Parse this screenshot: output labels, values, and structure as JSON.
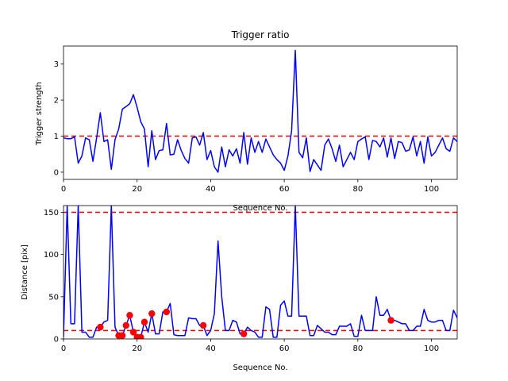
{
  "chart_data": [
    {
      "type": "line",
      "title": "Trigger ratio",
      "xlabel": "Sequence No.",
      "ylabel": "Trigger strength",
      "xlim": [
        0,
        107
      ],
      "ylim": [
        -0.2,
        3.5
      ],
      "xticks": [
        0,
        20,
        40,
        60,
        80,
        100
      ],
      "yticks": [
        0,
        1,
        2,
        3
      ],
      "grid": false,
      "series": [
        {
          "color": "#0000ff",
          "style": "solid",
          "x": [
            0,
            1,
            2,
            3,
            4,
            5,
            6,
            7,
            8,
            9,
            10,
            11,
            12,
            13,
            14,
            15,
            16,
            17,
            18,
            19,
            20,
            21,
            22,
            23,
            24,
            25,
            26,
            27,
            28,
            29,
            30,
            31,
            32,
            33,
            34,
            35,
            36,
            37,
            38,
            39,
            40,
            41,
            42,
            43,
            44,
            45,
            46,
            47,
            48,
            49,
            50,
            51,
            52,
            53,
            54,
            55,
            56,
            57,
            58,
            59,
            60,
            61,
            62,
            63,
            64,
            65,
            66,
            67,
            68,
            69,
            70,
            71,
            72,
            73,
            74,
            75,
            76,
            77,
            78,
            79,
            80,
            81,
            82,
            83,
            84,
            85,
            86,
            87,
            88,
            89,
            90,
            91,
            92,
            93,
            94,
            95,
            96,
            97,
            98,
            99,
            100,
            101,
            102,
            103,
            104,
            105,
            106,
            107
          ],
          "y": [
            0.95,
            0.93,
            0.93,
            0.98,
            0.25,
            0.45,
            0.95,
            0.9,
            0.3,
            0.95,
            1.65,
            0.85,
            0.9,
            0.08,
            0.9,
            1.2,
            1.75,
            1.82,
            1.9,
            2.15,
            1.8,
            1.4,
            1.2,
            0.15,
            1.15,
            0.35,
            0.6,
            0.62,
            1.35,
            0.48,
            0.5,
            0.9,
            0.6,
            0.38,
            0.25,
            0.95,
            0.98,
            0.75,
            1.1,
            0.35,
            0.6,
            0.15,
            0.0,
            0.7,
            0.15,
            0.62,
            0.45,
            0.65,
            0.25,
            1.1,
            0.22,
            0.95,
            0.55,
            0.85,
            0.55,
            0.92,
            0.7,
            0.48,
            0.35,
            0.25,
            0.05,
            0.45,
            1.15,
            3.38,
            0.55,
            0.4,
            0.95,
            0.02,
            0.35,
            0.2,
            0.05,
            0.75,
            0.92,
            0.65,
            0.3,
            0.75,
            0.15,
            0.35,
            0.55,
            0.35,
            0.85,
            0.92,
            0.98,
            0.35,
            0.88,
            0.85,
            0.7,
            0.95,
            0.42,
            0.95,
            0.38,
            0.85,
            0.82,
            0.58,
            0.62,
            0.98,
            0.45,
            0.85,
            0.25,
            0.98,
            0.45,
            0.55,
            0.75,
            0.95,
            0.65,
            0.58,
            0.95,
            0.85
          ]
        }
      ],
      "hlines": [
        {
          "y": 1.0,
          "color": "#ff0000",
          "style": "dashed"
        }
      ]
    },
    {
      "type": "line",
      "title": "",
      "xlabel": "Sequence No.",
      "ylabel": "Distance [pix]",
      "xlim": [
        0,
        107
      ],
      "ylim": [
        0,
        158
      ],
      "xticks": [
        0,
        20,
        40,
        60,
        80,
        100
      ],
      "yticks": [
        0,
        50,
        100,
        150
      ],
      "grid": false,
      "series": [
        {
          "color": "#0000ff",
          "style": "solid",
          "x": [
            0,
            1,
            2,
            3,
            4,
            5,
            6,
            7,
            8,
            9,
            10,
            11,
            12,
            13,
            14,
            15,
            16,
            17,
            18,
            19,
            20,
            21,
            22,
            23,
            24,
            25,
            26,
            27,
            28,
            29,
            30,
            31,
            32,
            33,
            34,
            35,
            36,
            37,
            38,
            39,
            40,
            41,
            42,
            43,
            44,
            45,
            46,
            47,
            48,
            49,
            50,
            51,
            52,
            53,
            54,
            55,
            56,
            57,
            58,
            59,
            60,
            61,
            62,
            63,
            64,
            65,
            66,
            67,
            68,
            69,
            70,
            71,
            72,
            73,
            74,
            75,
            76,
            77,
            78,
            79,
            80,
            81,
            82,
            83,
            84,
            85,
            86,
            87,
            88,
            89,
            90,
            91,
            92,
            93,
            94,
            95,
            96,
            97,
            98,
            99,
            100,
            101,
            102,
            103,
            104,
            105,
            106,
            107
          ],
          "y": [
            2,
            158,
            18,
            18,
            158,
            8,
            8,
            2,
            2,
            14,
            14,
            20,
            22,
            158,
            14,
            4,
            4,
            16,
            28,
            8,
            2,
            2,
            20,
            8,
            30,
            6,
            6,
            32,
            32,
            42,
            5,
            4,
            4,
            4,
            25,
            24,
            24,
            16,
            16,
            4,
            10,
            30,
            116,
            50,
            10,
            10,
            22,
            20,
            6,
            6,
            14,
            10,
            8,
            2,
            2,
            38,
            35,
            2,
            2,
            40,
            45,
            27,
            27,
            158,
            27,
            27,
            27,
            4,
            4,
            16,
            12,
            8,
            8,
            5,
            5,
            15,
            15,
            15,
            18,
            3,
            3,
            28,
            10,
            10,
            10,
            50,
            28,
            28,
            35,
            22,
            22,
            20,
            18,
            18,
            10,
            10,
            15,
            15,
            35,
            22,
            20,
            20,
            22,
            22,
            10,
            10,
            34,
            25
          ]
        }
      ],
      "markers": {
        "color": "#ff0000",
        "x": [
          10,
          15,
          16,
          17,
          18,
          19,
          20,
          21,
          22,
          24,
          28,
          38,
          49,
          89
        ],
        "y": [
          14,
          4,
          4,
          16,
          28,
          8,
          2,
          2,
          20,
          30,
          32,
          16,
          6,
          22
        ]
      },
      "hlines": [
        {
          "y": 150,
          "color": "#ff0000",
          "style": "dashed"
        },
        {
          "y": 10,
          "color": "#ff0000",
          "style": "dashed"
        }
      ]
    }
  ]
}
